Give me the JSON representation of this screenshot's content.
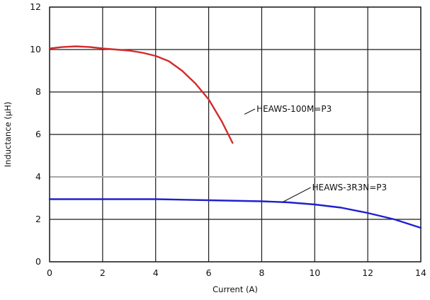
{
  "chart_data": {
    "type": "line",
    "title": "",
    "xlabel": "Current (A)",
    "ylabel": "Inductance (µH)",
    "xlim": [
      0,
      14
    ],
    "ylim": [
      0,
      12
    ],
    "x_ticks": [
      0,
      2,
      4,
      6,
      8,
      10,
      12,
      14
    ],
    "y_ticks": [
      0,
      2,
      4,
      6,
      8,
      10,
      12
    ],
    "grid": true,
    "legend": "none",
    "series": [
      {
        "color": "#d42a2a",
        "x": [
          0,
          0.5,
          1,
          1.5,
          2,
          2.5,
          3,
          3.5,
          4,
          4.5,
          5,
          5.5,
          6,
          6.5,
          6.9
        ],
        "y": [
          10.05,
          10.12,
          10.15,
          10.12,
          10.05,
          10.0,
          9.95,
          9.85,
          9.7,
          9.45,
          9.0,
          8.4,
          7.65,
          6.6,
          5.6
        ]
      },
      {
        "color": "#2020d0",
        "x": [
          0,
          2,
          4,
          6,
          8,
          9,
          10,
          11,
          12,
          13,
          14
        ],
        "y": [
          2.95,
          2.95,
          2.95,
          2.9,
          2.85,
          2.8,
          2.7,
          2.55,
          2.3,
          2.0,
          1.6
        ]
      }
    ],
    "annotations": [
      {
        "text": "HEAWS-100M=P3",
        "x": 7.35,
        "y": 6.95,
        "label_x": 7.75,
        "label_y": 7.2
      },
      {
        "text": "HEAWS-3R3N=P3",
        "x": 8.8,
        "y": 2.82,
        "label_x": 9.85,
        "label_y": 3.5
      }
    ]
  }
}
